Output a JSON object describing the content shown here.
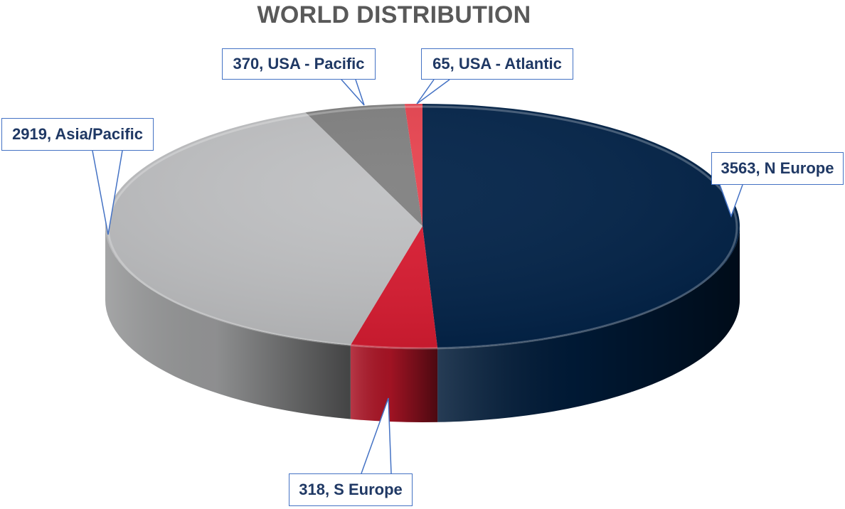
{
  "chart_data": {
    "type": "pie",
    "title": "WORLD DISTRIBUTION",
    "slices": [
      {
        "label": "N Europe",
        "value": 3563,
        "color": "#002147"
      },
      {
        "label": "S Europe",
        "value": 318,
        "color": "#D9192F"
      },
      {
        "label": "Asia/Pacific",
        "value": 2919,
        "color": "#BFC0C2"
      },
      {
        "label": "USA - Pacific",
        "value": 370,
        "color": "#7F7F7F"
      },
      {
        "label": "USA - Atlantic",
        "value": 65,
        "color": "#E8424E"
      }
    ],
    "data_labels": [
      "3563, N Europe",
      "318, S Europe",
      "2919, Asia/Pacific",
      "370, USA - Pacific",
      "65, USA - Atlantic"
    ],
    "style": "3d-pie"
  }
}
